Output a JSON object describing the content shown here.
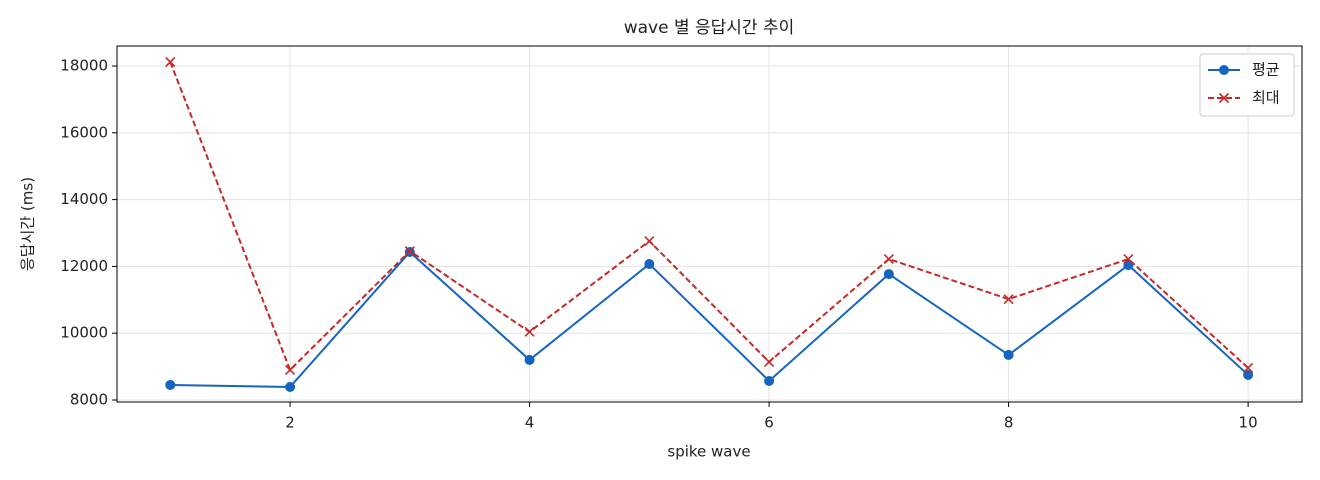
{
  "chart_data": {
    "type": "line",
    "title": "wave 별 응답시간 추이",
    "x_label": "spike wave",
    "y_label": "응답시간 (ms)",
    "x": [
      1,
      2,
      3,
      4,
      5,
      6,
      7,
      8,
      9,
      10
    ],
    "series": [
      {
        "name": "평균",
        "color": "#1565c0",
        "marker": "o",
        "dashed": false,
        "values": [
          8450,
          8390,
          12430,
          9200,
          12070,
          8570,
          11770,
          9350,
          12040,
          8750
        ]
      },
      {
        "name": "최대",
        "color": "#c62828",
        "marker": "x",
        "dashed": true,
        "values": [
          18120,
          8900,
          12460,
          10040,
          12760,
          9140,
          12220,
          11020,
          12220,
          8960
        ]
      }
    ],
    "xlim": [
      0.555,
      10.45
    ],
    "ylim": [
      7940,
      18599
    ],
    "xticks": [
      2,
      4,
      6,
      8,
      10
    ],
    "yticks": [
      8000,
      10000,
      12000,
      14000,
      16000,
      18000
    ],
    "grid": true,
    "legend": "upper right"
  }
}
